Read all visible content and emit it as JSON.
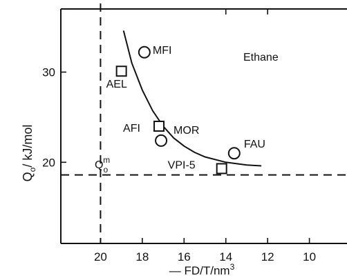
{
  "chart_data": {
    "type": "scatter",
    "title": "",
    "series_label": "Ethane",
    "ylabel": "Q",
    "ylabel_sub": "o",
    "ylabel_unit": "/ kJ/mol",
    "xlabel": "— FD/T/nm",
    "xlabel_sup": "3",
    "x_reversed": true,
    "xlim": [
      21.9,
      8.2
    ],
    "ylim": [
      11.0,
      37.0
    ],
    "xticks": [
      20,
      18,
      16,
      14,
      12,
      10
    ],
    "yticks": [
      20,
      30
    ],
    "points": [
      {
        "label": "MFI",
        "x": 17.9,
        "y": 32.2,
        "marker": "circle"
      },
      {
        "label": "AEL",
        "x": 19.0,
        "y": 30.1,
        "marker": "square"
      },
      {
        "label": "AFI",
        "x": 17.2,
        "y": 24.0,
        "marker": "square"
      },
      {
        "label": "MOR",
        "x": 17.1,
        "y": 22.4,
        "marker": "circle"
      },
      {
        "label": "FAU",
        "x": 13.6,
        "y": 21.0,
        "marker": "circle"
      },
      {
        "label": "VPI-5",
        "x": 14.2,
        "y": 19.3,
        "marker": "square"
      }
    ],
    "fit_curve": [
      [
        18.9,
        34.6
      ],
      [
        18.5,
        31.0
      ],
      [
        18.0,
        28.0
      ],
      [
        17.5,
        25.7
      ],
      [
        17.0,
        24.0
      ],
      [
        16.5,
        22.7
      ],
      [
        16.0,
        21.8
      ],
      [
        15.5,
        21.1
      ],
      [
        15.0,
        20.6
      ],
      [
        14.0,
        20.0
      ],
      [
        13.0,
        19.7
      ],
      [
        12.3,
        19.6
      ]
    ],
    "reference_lines": {
      "horizontal_y": 18.6,
      "horizontal_label": "Q",
      "horizontal_label_sub": "o",
      "horizontal_label_sup": "m",
      "vertical_x": 20
    }
  }
}
